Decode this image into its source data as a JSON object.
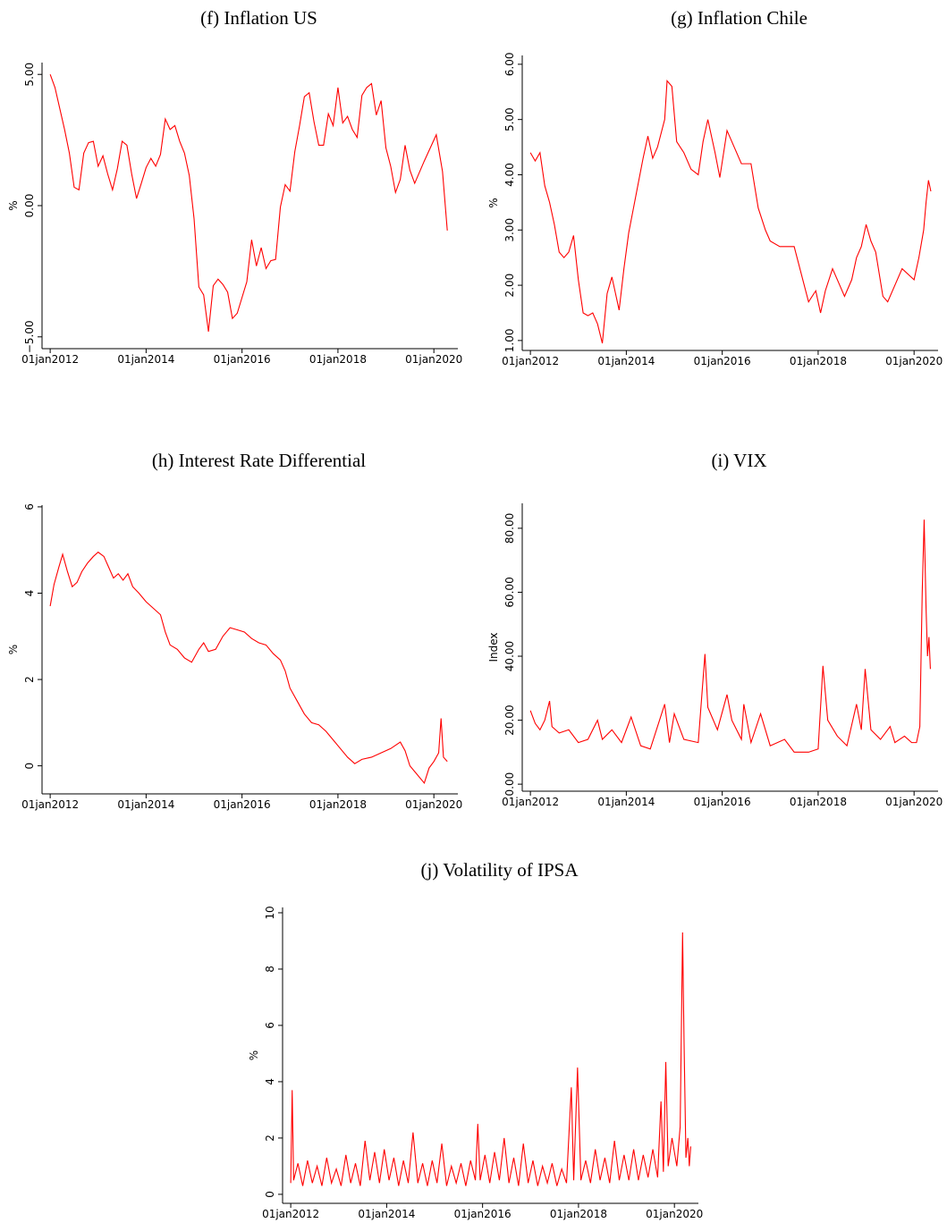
{
  "chart_data": [
    {
      "type": "line",
      "title": "(f) Inflation US",
      "y_label": "%",
      "color": "#ff0000",
      "xlim": [
        2011.83,
        2020.5
      ],
      "ylim": [
        -5.45,
        5.45
      ],
      "xticks": [
        {
          "value": 2012,
          "label": "01jan2012"
        },
        {
          "value": 2014,
          "label": "01jan2014"
        },
        {
          "value": 2016,
          "label": "01jan2016"
        },
        {
          "value": 2018,
          "label": "01jan2018"
        },
        {
          "value": 2020,
          "label": "01jan2020"
        }
      ],
      "yticks": [
        {
          "value": -5,
          "label": "−5.00"
        },
        {
          "value": 0,
          "label": "0.00"
        },
        {
          "value": 5,
          "label": "5.00"
        }
      ],
      "x": [
        2012.0,
        2012.1,
        2012.2,
        2012.3,
        2012.4,
        2012.5,
        2012.6,
        2012.7,
        2012.8,
        2012.9,
        2013.0,
        2013.1,
        2013.2,
        2013.3,
        2013.4,
        2013.5,
        2013.6,
        2013.7,
        2013.8,
        2013.9,
        2014.0,
        2014.1,
        2014.2,
        2014.3,
        2014.4,
        2014.5,
        2014.6,
        2014.7,
        2014.8,
        2014.9,
        2015.0,
        2015.1,
        2015.2,
        2015.3,
        2015.4,
        2015.5,
        2015.6,
        2015.7,
        2015.8,
        2015.9,
        2016.0,
        2016.1,
        2016.2,
        2016.3,
        2016.4,
        2016.5,
        2016.6,
        2016.7,
        2016.8,
        2016.9,
        2017.0,
        2017.1,
        2017.2,
        2017.3,
        2017.4,
        2017.5,
        2017.6,
        2017.7,
        2017.8,
        2017.9,
        2018.0,
        2018.1,
        2018.2,
        2018.3,
        2018.4,
        2018.5,
        2018.6,
        2018.7,
        2018.8,
        2018.9,
        2019.0,
        2019.1,
        2019.2,
        2019.3,
        2019.4,
        2019.5,
        2019.6,
        2019.8,
        2020.05,
        2020.18,
        2020.28
      ],
      "values": [
        5.0,
        4.5,
        3.7,
        2.9,
        2.0,
        0.7,
        0.6,
        2.0,
        2.4,
        2.45,
        1.5,
        1.9,
        1.2,
        0.6,
        1.4,
        2.45,
        2.3,
        1.2,
        0.27,
        0.85,
        1.45,
        1.8,
        1.5,
        1.95,
        3.3,
        2.9,
        3.05,
        2.45,
        2.0,
        1.15,
        -0.5,
        -3.1,
        -3.4,
        -4.8,
        -3.05,
        -2.8,
        -3.0,
        -3.3,
        -4.3,
        -4.1,
        -3.5,
        -2.9,
        -1.3,
        -2.3,
        -1.6,
        -2.4,
        -2.1,
        -2.05,
        -0.05,
        0.8,
        0.55,
        2.05,
        3.05,
        4.15,
        4.3,
        3.2,
        2.3,
        2.3,
        3.5,
        3.05,
        4.5,
        3.15,
        3.4,
        2.9,
        2.6,
        4.2,
        4.5,
        4.65,
        3.45,
        4.0,
        2.2,
        1.5,
        0.5,
        1.0,
        2.3,
        1.35,
        0.85,
        1.7,
        2.7,
        1.3,
        -0.95
      ]
    },
    {
      "type": "line",
      "title": "(g) Inflation Chile",
      "y_label": "%",
      "color": "#ff0000",
      "xlim": [
        2011.83,
        2020.5
      ],
      "ylim": [
        0.82,
        6.16
      ],
      "xticks": [
        {
          "value": 2012,
          "label": "01jan2012"
        },
        {
          "value": 2014,
          "label": "01jan2014"
        },
        {
          "value": 2016,
          "label": "01jan2016"
        },
        {
          "value": 2018,
          "label": "01jan2018"
        },
        {
          "value": 2020,
          "label": "01jan2020"
        }
      ],
      "yticks": [
        {
          "value": 1,
          "label": "1.00"
        },
        {
          "value": 2,
          "label": "2.00"
        },
        {
          "value": 3,
          "label": "3.00"
        },
        {
          "value": 4,
          "label": "4.00"
        },
        {
          "value": 5,
          "label": "5.00"
        },
        {
          "value": 6,
          "label": "6.00"
        }
      ],
      "x": [
        2012.0,
        2012.1,
        2012.2,
        2012.3,
        2012.4,
        2012.5,
        2012.6,
        2012.7,
        2012.8,
        2012.9,
        2013.0,
        2013.1,
        2013.2,
        2013.3,
        2013.4,
        2013.5,
        2013.6,
        2013.7,
        2013.85,
        2013.95,
        2014.05,
        2014.15,
        2014.25,
        2014.35,
        2014.45,
        2014.55,
        2014.65,
        2014.8,
        2014.85,
        2014.95,
        2015.05,
        2015.2,
        2015.35,
        2015.5,
        2015.6,
        2015.7,
        2015.85,
        2015.95,
        2016.1,
        2016.25,
        2016.4,
        2016.6,
        2016.75,
        2016.9,
        2017.0,
        2017.2,
        2017.5,
        2017.8,
        2017.95,
        2018.05,
        2018.15,
        2018.3,
        2018.45,
        2018.55,
        2018.7,
        2018.8,
        2018.9,
        2019.0,
        2019.1,
        2019.2,
        2019.35,
        2019.45,
        2019.6,
        2019.75,
        2020.0,
        2020.1,
        2020.2,
        2020.25,
        2020.3,
        2020.35
      ],
      "values": [
        4.4,
        4.25,
        4.4,
        3.8,
        3.5,
        3.1,
        2.6,
        2.5,
        2.6,
        2.9,
        2.1,
        1.5,
        1.45,
        1.5,
        1.3,
        0.95,
        1.85,
        2.15,
        1.55,
        2.3,
        2.95,
        3.4,
        3.85,
        4.3,
        4.7,
        4.3,
        4.5,
        5.0,
        5.7,
        5.6,
        4.6,
        4.4,
        4.1,
        4.0,
        4.6,
        5.0,
        4.4,
        3.95,
        4.8,
        4.5,
        4.2,
        4.2,
        3.4,
        3.0,
        2.8,
        2.7,
        2.7,
        1.7,
        1.9,
        1.5,
        1.9,
        2.3,
        2.0,
        1.8,
        2.1,
        2.5,
        2.7,
        3.1,
        2.8,
        2.6,
        1.8,
        1.7,
        2.0,
        2.3,
        2.1,
        2.5,
        3.0,
        3.5,
        3.9,
        3.7
      ]
    },
    {
      "type": "line",
      "title": "(h) Interest Rate Differential",
      "y_label": "%",
      "color": "#ff0000",
      "xlim": [
        2011.83,
        2020.5
      ],
      "ylim": [
        -0.65,
        6.04
      ],
      "xticks": [
        {
          "value": 2012,
          "label": "01jan2012"
        },
        {
          "value": 2014,
          "label": "01jan2014"
        },
        {
          "value": 2016,
          "label": "01jan2016"
        },
        {
          "value": 2018,
          "label": "01jan2018"
        },
        {
          "value": 2020,
          "label": "01jan2020"
        }
      ],
      "yticks": [
        0,
        2,
        4,
        6
      ],
      "x": [
        2012.0,
        2012.08,
        2012.18,
        2012.26,
        2012.36,
        2012.46,
        2012.56,
        2012.66,
        2012.78,
        2012.9,
        2013.0,
        2013.12,
        2013.22,
        2013.32,
        2013.42,
        2013.52,
        2013.62,
        2013.72,
        2013.85,
        2014.0,
        2014.15,
        2014.3,
        2014.4,
        2014.5,
        2014.65,
        2014.8,
        2014.95,
        2015.1,
        2015.2,
        2015.3,
        2015.45,
        2015.6,
        2015.75,
        2015.9,
        2016.05,
        2016.2,
        2016.35,
        2016.5,
        2016.65,
        2016.8,
        2016.9,
        2017.0,
        2017.15,
        2017.3,
        2017.45,
        2017.6,
        2017.75,
        2017.9,
        2018.05,
        2018.2,
        2018.35,
        2018.5,
        2018.7,
        2018.9,
        2019.1,
        2019.3,
        2019.4,
        2019.5,
        2019.65,
        2019.8,
        2019.9,
        2020.0,
        2020.1,
        2020.15,
        2020.2,
        2020.28
      ],
      "values": [
        3.7,
        4.2,
        4.6,
        4.9,
        4.5,
        4.15,
        4.25,
        4.5,
        4.7,
        4.85,
        4.95,
        4.85,
        4.6,
        4.35,
        4.45,
        4.3,
        4.45,
        4.15,
        4.0,
        3.8,
        3.65,
        3.5,
        3.1,
        2.8,
        2.7,
        2.5,
        2.4,
        2.7,
        2.85,
        2.65,
        2.7,
        3.0,
        3.2,
        3.15,
        3.1,
        2.95,
        2.85,
        2.8,
        2.6,
        2.45,
        2.2,
        1.8,
        1.5,
        1.2,
        1.0,
        0.95,
        0.8,
        0.6,
        0.4,
        0.2,
        0.05,
        0.15,
        0.2,
        0.3,
        0.4,
        0.55,
        0.35,
        0.0,
        -0.2,
        -0.4,
        -0.05,
        0.1,
        0.3,
        1.1,
        0.2,
        0.1
      ]
    },
    {
      "type": "line",
      "title": "(i) VIX",
      "y_label": "Index",
      "color": "#ff0000",
      "xlim": [
        2011.83,
        2020.5
      ],
      "ylim": [
        -2.2,
        87.8
      ],
      "xticks": [
        {
          "value": 2012,
          "label": "01jan2012"
        },
        {
          "value": 2014,
          "label": "01jan2014"
        },
        {
          "value": 2016,
          "label": "01jan2016"
        },
        {
          "value": 2018,
          "label": "01jan2018"
        },
        {
          "value": 2020,
          "label": "01jan2020"
        }
      ],
      "yticks": [
        {
          "value": 0,
          "label": "0.00"
        },
        {
          "value": 20,
          "label": "20.00"
        },
        {
          "value": 40,
          "label": "40.00"
        },
        {
          "value": 60,
          "label": "60.00"
        },
        {
          "value": 80,
          "label": "80.00"
        }
      ],
      "x": [
        2012.0,
        2012.1,
        2012.2,
        2012.3,
        2012.4,
        2012.45,
        2012.6,
        2012.8,
        2013.0,
        2013.2,
        2013.4,
        2013.5,
        2013.7,
        2013.9,
        2014.1,
        2014.3,
        2014.5,
        2014.8,
        2014.9,
        2015.0,
        2015.2,
        2015.5,
        2015.64,
        2015.7,
        2015.9,
        2016.1,
        2016.2,
        2016.4,
        2016.45,
        2016.6,
        2016.8,
        2017.0,
        2017.3,
        2017.5,
        2017.8,
        2018.0,
        2018.1,
        2018.2,
        2018.4,
        2018.6,
        2018.8,
        2018.9,
        2018.98,
        2019.1,
        2019.3,
        2019.5,
        2019.6,
        2019.8,
        2019.95,
        2020.05,
        2020.12,
        2020.17,
        2020.21,
        2020.25,
        2020.28,
        2020.31,
        2020.34
      ],
      "values": [
        23,
        19,
        17,
        20,
        26,
        18,
        16,
        17,
        13,
        14,
        20,
        14,
        17,
        13,
        21,
        12,
        11,
        25,
        13,
        22,
        14,
        13,
        40.7,
        24,
        17,
        28,
        20,
        14,
        25,
        13,
        22,
        12,
        14,
        10,
        10,
        11,
        37,
        20,
        15,
        12,
        25,
        17,
        36,
        17,
        14,
        18,
        13,
        15,
        13,
        13,
        18,
        60,
        82.7,
        55,
        40,
        46,
        36
      ]
    },
    {
      "type": "line",
      "title": "(j) Volatility of IPSA",
      "y_label": "%",
      "color": "#ff0000",
      "xlim": [
        2011.83,
        2020.5
      ],
      "ylim": [
        -0.32,
        10.19
      ],
      "xticks": [
        {
          "value": 2012,
          "label": "01jan2012"
        },
        {
          "value": 2014,
          "label": "01jan2014"
        },
        {
          "value": 2016,
          "label": "01jan2016"
        },
        {
          "value": 2018,
          "label": "01jan2018"
        },
        {
          "value": 2020,
          "label": "01jan2020"
        }
      ],
      "yticks": [
        0,
        2,
        4,
        6,
        8,
        10
      ],
      "x": [
        2012.0,
        2012.03,
        2012.06,
        2012.15,
        2012.25,
        2012.35,
        2012.45,
        2012.55,
        2012.65,
        2012.75,
        2012.85,
        2012.95,
        2013.05,
        2013.15,
        2013.25,
        2013.35,
        2013.45,
        2013.55,
        2013.65,
        2013.75,
        2013.85,
        2013.95,
        2014.05,
        2014.15,
        2014.25,
        2014.35,
        2014.45,
        2014.55,
        2014.65,
        2014.75,
        2014.85,
        2014.95,
        2015.05,
        2015.15,
        2015.25,
        2015.35,
        2015.45,
        2015.55,
        2015.65,
        2015.75,
        2015.85,
        2015.9,
        2015.95,
        2016.05,
        2016.15,
        2016.25,
        2016.35,
        2016.45,
        2016.55,
        2016.65,
        2016.75,
        2016.85,
        2016.95,
        2017.05,
        2017.15,
        2017.25,
        2017.35,
        2017.45,
        2017.55,
        2017.65,
        2017.75,
        2017.85,
        2017.9,
        2017.98,
        2018.05,
        2018.15,
        2018.25,
        2018.35,
        2018.45,
        2018.55,
        2018.65,
        2018.75,
        2018.85,
        2018.95,
        2019.05,
        2019.15,
        2019.25,
        2019.35,
        2019.45,
        2019.55,
        2019.65,
        2019.72,
        2019.77,
        2019.82,
        2019.87,
        2019.95,
        2020.05,
        2020.12,
        2020.17,
        2020.2,
        2020.24,
        2020.28,
        2020.31,
        2020.34
      ],
      "values": [
        0.4,
        3.7,
        0.5,
        1.1,
        0.3,
        1.2,
        0.4,
        1.0,
        0.3,
        1.3,
        0.4,
        0.9,
        0.3,
        1.4,
        0.4,
        1.1,
        0.3,
        1.9,
        0.5,
        1.5,
        0.4,
        1.6,
        0.5,
        1.3,
        0.3,
        1.2,
        0.4,
        2.2,
        0.4,
        1.1,
        0.3,
        1.2,
        0.4,
        1.8,
        0.3,
        1.0,
        0.4,
        1.1,
        0.3,
        1.2,
        0.5,
        2.5,
        0.5,
        1.4,
        0.4,
        1.5,
        0.5,
        2.0,
        0.4,
        1.3,
        0.3,
        1.8,
        0.4,
        1.2,
        0.3,
        1.0,
        0.4,
        1.1,
        0.3,
        0.9,
        0.4,
        3.8,
        0.5,
        4.5,
        0.5,
        1.2,
        0.4,
        1.6,
        0.5,
        1.3,
        0.4,
        1.9,
        0.5,
        1.4,
        0.5,
        1.6,
        0.5,
        1.4,
        0.6,
        1.6,
        0.6,
        3.3,
        0.8,
        4.7,
        1.0,
        2.0,
        1.0,
        2.4,
        9.3,
        5.5,
        1.3,
        2.0,
        1.0,
        1.7
      ]
    }
  ]
}
